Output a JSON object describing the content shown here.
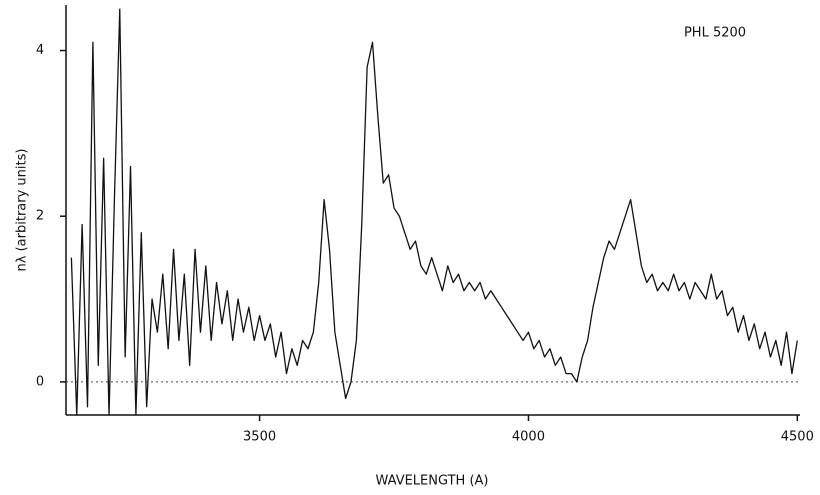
{
  "chart_data": {
    "type": "line",
    "annotation": "PHL 5200",
    "xlabel": "WAVELENGTH (A)",
    "ylabel": "nλ (arbitrary units)",
    "xlim": [
      3140,
      4505
    ],
    "ylim": [
      -0.4,
      4.55
    ],
    "xticks": [
      3500,
      4000,
      4500
    ],
    "yticks": [
      0,
      2,
      4
    ],
    "hline": 0,
    "x": [
      3150,
      3160,
      3170,
      3180,
      3190,
      3200,
      3210,
      3220,
      3230,
      3240,
      3250,
      3260,
      3270,
      3280,
      3290,
      3300,
      3310,
      3320,
      3330,
      3340,
      3350,
      3360,
      3370,
      3380,
      3390,
      3400,
      3410,
      3420,
      3430,
      3440,
      3450,
      3460,
      3470,
      3480,
      3490,
      3500,
      3510,
      3520,
      3530,
      3540,
      3550,
      3560,
      3570,
      3580,
      3590,
      3600,
      3610,
      3620,
      3630,
      3640,
      3650,
      3660,
      3670,
      3680,
      3690,
      3700,
      3710,
      3720,
      3730,
      3740,
      3750,
      3760,
      3770,
      3780,
      3790,
      3800,
      3810,
      3820,
      3830,
      3840,
      3850,
      3860,
      3870,
      3880,
      3890,
      3900,
      3910,
      3920,
      3930,
      3940,
      3950,
      3960,
      3970,
      3980,
      3990,
      4000,
      4010,
      4020,
      4030,
      4040,
      4050,
      4060,
      4070,
      4080,
      4090,
      4100,
      4110,
      4120,
      4130,
      4140,
      4150,
      4160,
      4170,
      4180,
      4190,
      4200,
      4210,
      4220,
      4230,
      4240,
      4250,
      4260,
      4270,
      4280,
      4290,
      4300,
      4310,
      4320,
      4330,
      4340,
      4350,
      4360,
      4370,
      4380,
      4390,
      4400,
      4410,
      4420,
      4430,
      4440,
      4450,
      4460,
      4470,
      4480,
      4490,
      4500
    ],
    "series": [
      {
        "color": "#111111",
        "values": [
          1.5,
          -0.4,
          1.9,
          -0.3,
          4.1,
          0.2,
          2.7,
          -0.4,
          2.2,
          4.5,
          0.3,
          2.6,
          -0.4,
          1.8,
          -0.3,
          1.0,
          0.6,
          1.3,
          0.4,
          1.6,
          0.5,
          1.3,
          0.2,
          1.6,
          0.6,
          1.4,
          0.5,
          1.2,
          0.7,
          1.1,
          0.5,
          1.0,
          0.6,
          0.9,
          0.5,
          0.8,
          0.5,
          0.7,
          0.3,
          0.6,
          0.1,
          0.4,
          0.2,
          0.5,
          0.4,
          0.6,
          1.2,
          2.2,
          1.6,
          0.6,
          0.2,
          -0.2,
          0.0,
          0.5,
          1.9,
          3.8,
          4.1,
          3.2,
          2.4,
          2.5,
          2.1,
          2.0,
          1.8,
          1.6,
          1.7,
          1.4,
          1.3,
          1.5,
          1.3,
          1.1,
          1.4,
          1.2,
          1.3,
          1.1,
          1.2,
          1.1,
          1.2,
          1.0,
          1.1,
          1.0,
          0.9,
          0.8,
          0.7,
          0.6,
          0.5,
          0.6,
          0.4,
          0.5,
          0.3,
          0.4,
          0.2,
          0.3,
          0.1,
          0.1,
          0.0,
          0.3,
          0.5,
          0.9,
          1.2,
          1.5,
          1.7,
          1.6,
          1.8,
          2.0,
          2.2,
          1.8,
          1.4,
          1.2,
          1.3,
          1.1,
          1.2,
          1.1,
          1.3,
          1.1,
          1.2,
          1.0,
          1.2,
          1.1,
          1.0,
          1.3,
          1.0,
          1.1,
          0.8,
          0.9,
          0.6,
          0.8,
          0.5,
          0.7,
          0.4,
          0.6,
          0.3,
          0.5,
          0.2,
          0.6,
          0.1,
          0.5
        ]
      }
    ]
  }
}
